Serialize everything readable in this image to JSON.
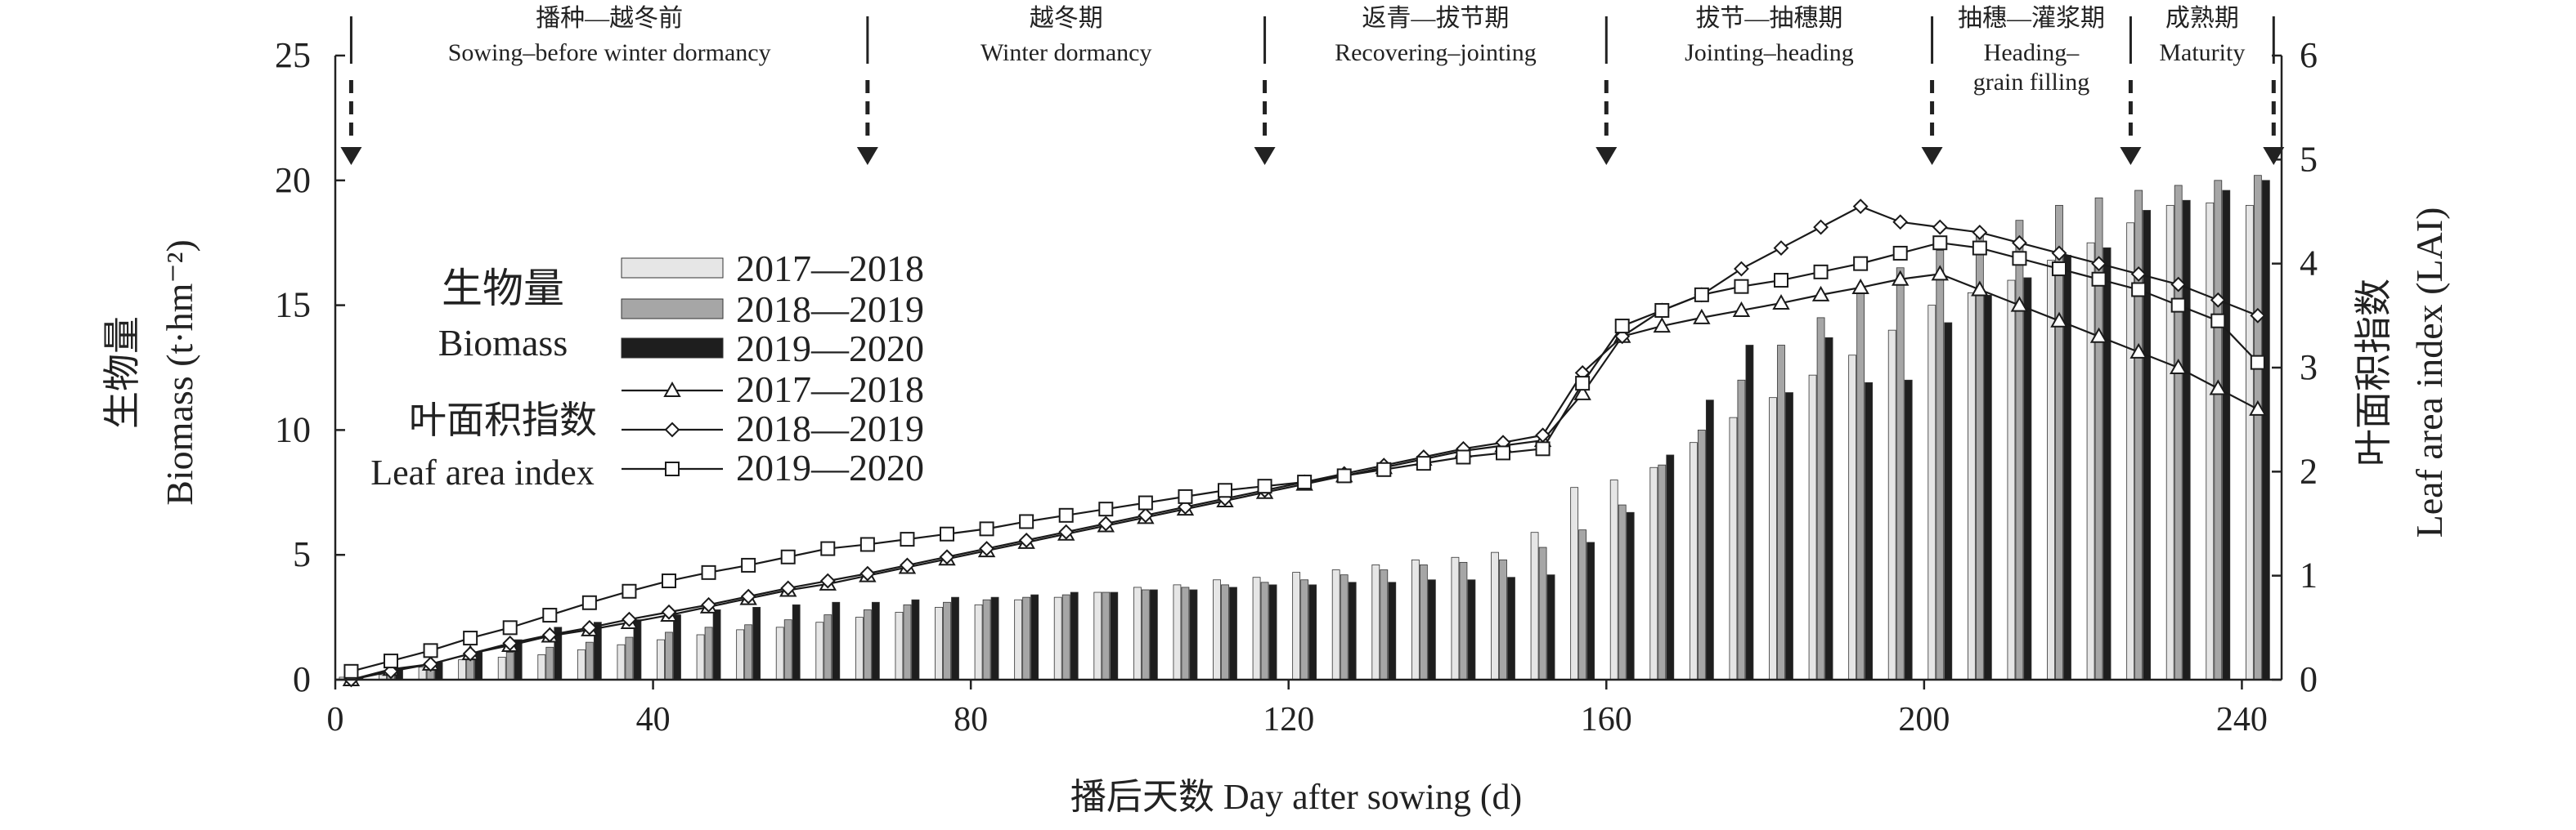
{
  "chart_data": {
    "type": "bar+line",
    "xlabel": "播后天数 Day after sowing (d)",
    "ylabel_left": [
      "生物量",
      "Biomass (t·hm⁻²)"
    ],
    "ylabel_right": [
      "叶面积指数",
      "Leaf area index (LAI)"
    ],
    "xlim": [
      0,
      245
    ],
    "xticks": [
      0,
      40,
      80,
      120,
      160,
      200,
      240
    ],
    "ylim_left": [
      0,
      25
    ],
    "yticks_left": [
      0,
      5,
      10,
      15,
      20,
      25
    ],
    "ylim_right": [
      0,
      6
    ],
    "yticks_right": [
      0,
      1,
      2,
      3,
      4,
      5,
      6
    ],
    "grid": false,
    "legend_position": "left-middle",
    "stages": [
      {
        "cn": "播种—越冬前",
        "en": "Sowing–before winter dormancy",
        "start": 2,
        "end": 67
      },
      {
        "cn": "越冬期",
        "en": "Winter dormancy",
        "start": 67,
        "end": 117
      },
      {
        "cn": "返青—拔节期",
        "en": "Recovering–jointing",
        "start": 117,
        "end": 160
      },
      {
        "cn": "拔节—抽穗期",
        "en": "Jointing–heading",
        "start": 160,
        "end": 201
      },
      {
        "cn": "抽穗—灌浆期",
        "en": "Heading–\ngrain filling",
        "start": 201,
        "end": 226
      },
      {
        "cn": "成熟期",
        "en": "Maturity",
        "start": 226,
        "end": 244
      }
    ],
    "stage_arrows_x": [
      2,
      67,
      117,
      160,
      201,
      226,
      244
    ],
    "legend": {
      "biomass_title_cn": "生物量",
      "biomass_title_en": "Biomass",
      "lai_title_cn": "叶面积指数",
      "lai_title_en": "Leaf area index",
      "labels": [
        "2017—2018",
        "2018—2019",
        "2019—2020"
      ]
    },
    "biomass_x": [
      2,
      7,
      12,
      17,
      22,
      27,
      32,
      37,
      42,
      47,
      52,
      57,
      62,
      67,
      72,
      77,
      82,
      87,
      92,
      97,
      102,
      107,
      112,
      117,
      122,
      127,
      132,
      137,
      142,
      147,
      152,
      157,
      162,
      167,
      172,
      177,
      182,
      187,
      192,
      197,
      202,
      207,
      212,
      217,
      222,
      227,
      232,
      237,
      242
    ],
    "biomass_series": [
      {
        "name": "2017—2018",
        "color": "#e6e6e6",
        "values": [
          0.1,
          0.2,
          0.5,
          0.8,
          0.9,
          1.0,
          1.2,
          1.4,
          1.6,
          1.8,
          2.0,
          2.1,
          2.3,
          2.5,
          2.7,
          2.9,
          3.0,
          3.2,
          3.3,
          3.5,
          3.7,
          3.8,
          4.0,
          4.1,
          4.3,
          4.4,
          4.6,
          4.8,
          4.9,
          5.1,
          5.9,
          7.7,
          8.0,
          8.5,
          9.5,
          10.5,
          11.3,
          12.2,
          13.0,
          14.0,
          15.0,
          15.5,
          16.0,
          16.8,
          17.5,
          18.3,
          19.0,
          19.1,
          19.0
        ]
      },
      {
        "name": "2018—2019",
        "color": "#a6a6a6",
        "values": [
          0.1,
          0.3,
          0.6,
          0.9,
          1.1,
          1.3,
          1.5,
          1.7,
          1.9,
          2.1,
          2.2,
          2.4,
          2.6,
          2.8,
          3.0,
          3.1,
          3.2,
          3.3,
          3.4,
          3.5,
          3.6,
          3.7,
          3.8,
          3.9,
          4.0,
          4.2,
          4.4,
          4.6,
          4.7,
          4.8,
          5.3,
          6.0,
          7.0,
          8.6,
          10.0,
          12.0,
          13.4,
          14.5,
          15.5,
          16.5,
          17.2,
          17.8,
          18.4,
          19.0,
          19.3,
          19.6,
          19.8,
          20.0,
          20.2
        ]
      },
      {
        "name": "2019—2020",
        "color": "#1e1e1e",
        "values": [
          0.1,
          0.4,
          0.7,
          1.1,
          1.6,
          2.1,
          2.3,
          2.4,
          2.6,
          2.8,
          2.9,
          3.0,
          3.1,
          3.1,
          3.2,
          3.3,
          3.3,
          3.4,
          3.5,
          3.5,
          3.6,
          3.6,
          3.7,
          3.8,
          3.8,
          3.9,
          3.9,
          4.0,
          4.0,
          4.1,
          4.2,
          5.5,
          6.7,
          9.0,
          11.2,
          13.4,
          11.5,
          13.7,
          11.9,
          12.0,
          14.3,
          15.4,
          16.1,
          17.0,
          17.3,
          18.8,
          19.2,
          19.6,
          20.0
        ]
      }
    ],
    "lai_series": [
      {
        "name": "2017—2018",
        "marker": "triangle",
        "x": [
          2,
          7,
          12,
          17,
          22,
          27,
          32,
          37,
          42,
          47,
          52,
          57,
          62,
          67,
          72,
          77,
          82,
          87,
          92,
          97,
          102,
          107,
          112,
          117,
          122,
          127,
          132,
          137,
          142,
          147,
          152,
          157,
          162,
          167,
          172,
          177,
          182,
          187,
          192,
          197,
          202,
          207,
          212,
          217,
          222,
          227,
          232,
          237,
          242
        ],
        "values": [
          0.0,
          0.1,
          0.15,
          0.25,
          0.33,
          0.42,
          0.48,
          0.55,
          0.62,
          0.7,
          0.78,
          0.86,
          0.92,
          1.0,
          1.08,
          1.16,
          1.24,
          1.32,
          1.4,
          1.48,
          1.56,
          1.64,
          1.72,
          1.8,
          1.88,
          1.96,
          2.04,
          2.12,
          2.2,
          2.25,
          2.3,
          2.75,
          3.3,
          3.4,
          3.48,
          3.55,
          3.62,
          3.7,
          3.77,
          3.85,
          3.9,
          3.75,
          3.6,
          3.45,
          3.3,
          3.15,
          3.0,
          2.8,
          2.6
        ]
      },
      {
        "name": "2018—2019",
        "marker": "diamond",
        "x": [
          2,
          7,
          12,
          17,
          22,
          27,
          32,
          37,
          42,
          47,
          52,
          57,
          62,
          67,
          72,
          77,
          82,
          87,
          92,
          97,
          102,
          107,
          112,
          117,
          122,
          127,
          132,
          137,
          142,
          147,
          152,
          157,
          162,
          167,
          172,
          177,
          182,
          187,
          192,
          197,
          202,
          207,
          212,
          217,
          222,
          227,
          232,
          237,
          242
        ],
        "values": [
          0.0,
          0.08,
          0.15,
          0.25,
          0.35,
          0.43,
          0.5,
          0.58,
          0.65,
          0.72,
          0.8,
          0.88,
          0.95,
          1.02,
          1.1,
          1.18,
          1.26,
          1.34,
          1.42,
          1.5,
          1.58,
          1.66,
          1.74,
          1.82,
          1.9,
          1.98,
          2.06,
          2.14,
          2.22,
          2.28,
          2.35,
          2.95,
          3.3,
          3.55,
          3.7,
          3.95,
          4.15,
          4.35,
          4.55,
          4.4,
          4.35,
          4.3,
          4.2,
          4.1,
          4.0,
          3.9,
          3.8,
          3.65,
          3.5
        ]
      },
      {
        "name": "2019—2020",
        "marker": "square",
        "x": [
          2,
          7,
          12,
          17,
          22,
          27,
          32,
          37,
          42,
          47,
          52,
          57,
          62,
          67,
          72,
          77,
          82,
          87,
          92,
          97,
          102,
          107,
          112,
          117,
          122,
          127,
          132,
          137,
          142,
          147,
          152,
          157,
          162,
          167,
          172,
          177,
          182,
          187,
          192,
          197,
          202,
          207,
          212,
          217,
          222,
          227,
          232,
          237,
          242
        ],
        "values": [
          0.08,
          0.18,
          0.28,
          0.4,
          0.5,
          0.62,
          0.74,
          0.85,
          0.95,
          1.03,
          1.1,
          1.18,
          1.26,
          1.3,
          1.35,
          1.4,
          1.45,
          1.52,
          1.58,
          1.64,
          1.7,
          1.76,
          1.82,
          1.86,
          1.9,
          1.96,
          2.02,
          2.08,
          2.14,
          2.18,
          2.22,
          2.85,
          3.4,
          3.55,
          3.7,
          3.78,
          3.84,
          3.92,
          4.0,
          4.1,
          4.2,
          4.15,
          4.05,
          3.95,
          3.85,
          3.75,
          3.6,
          3.45,
          3.05
        ]
      }
    ]
  }
}
